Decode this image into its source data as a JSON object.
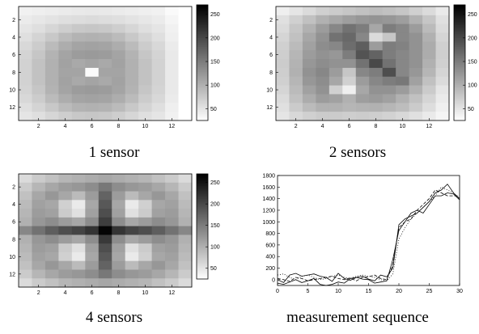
{
  "colormap": {
    "low": "#ffffff",
    "high": "#000000"
  },
  "chart_data": [
    {
      "type": "heatmap",
      "caption": "1 sensor",
      "rows": 13,
      "cols": 13,
      "xticks": [
        2,
        4,
        6,
        8,
        10,
        12
      ],
      "yticks": [
        2,
        4,
        6,
        8,
        10,
        12
      ],
      "colorbar": {
        "range": [
          25,
          270
        ],
        "ticks": [
          50,
          100,
          150,
          200,
          250
        ]
      },
      "values": [
        [
          38,
          40,
          42,
          44,
          46,
          47,
          46,
          44,
          42,
          40,
          38,
          30,
          25
        ],
        [
          44,
          48,
          52,
          56,
          58,
          60,
          58,
          56,
          52,
          48,
          44,
          35,
          25
        ],
        [
          50,
          56,
          64,
          72,
          78,
          80,
          78,
          72,
          64,
          56,
          50,
          38,
          25
        ],
        [
          56,
          66,
          78,
          90,
          98,
          100,
          98,
          90,
          78,
          66,
          56,
          40,
          25
        ],
        [
          62,
          74,
          90,
          104,
          112,
          114,
          112,
          104,
          90,
          74,
          62,
          44,
          25
        ],
        [
          66,
          80,
          98,
          112,
          120,
          122,
          120,
          112,
          98,
          80,
          66,
          46,
          25
        ],
        [
          68,
          84,
          100,
          114,
          108,
          112,
          108,
          114,
          100,
          84,
          68,
          46,
          25
        ],
        [
          68,
          84,
          100,
          112,
          112,
          30,
          112,
          112,
          100,
          84,
          68,
          46,
          25
        ],
        [
          68,
          84,
          100,
          114,
          108,
          112,
          108,
          114,
          100,
          84,
          68,
          46,
          25
        ],
        [
          66,
          80,
          98,
          112,
          120,
          122,
          120,
          112,
          98,
          80,
          66,
          46,
          25
        ],
        [
          62,
          74,
          90,
          104,
          112,
          114,
          112,
          104,
          90,
          74,
          62,
          44,
          25
        ],
        [
          56,
          66,
          78,
          90,
          98,
          100,
          98,
          90,
          78,
          66,
          56,
          40,
          25
        ],
        [
          50,
          56,
          64,
          72,
          78,
          80,
          78,
          72,
          64,
          56,
          50,
          38,
          25
        ]
      ]
    },
    {
      "type": "heatmap",
      "caption": "2 sensors",
      "rows": 13,
      "cols": 13,
      "xticks": [
        2,
        4,
        6,
        8,
        10,
        12
      ],
      "yticks": [
        2,
        4,
        6,
        8,
        10,
        12
      ],
      "colorbar": {
        "range": [
          25,
          270
        ],
        "ticks": [
          50,
          100,
          150,
          200,
          250
        ]
      },
      "values": [
        [
          40,
          50,
          60,
          70,
          75,
          80,
          85,
          88,
          85,
          80,
          70,
          60,
          45
        ],
        [
          55,
          70,
          85,
          100,
          110,
          118,
          125,
          128,
          125,
          118,
          100,
          80,
          55
        ],
        [
          60,
          80,
          100,
          120,
          140,
          160,
          150,
          110,
          150,
          140,
          120,
          90,
          60
        ],
        [
          65,
          85,
          110,
          130,
          160,
          170,
          140,
          60,
          80,
          140,
          130,
          100,
          65
        ],
        [
          70,
          90,
          115,
          135,
          140,
          165,
          180,
          120,
          150,
          145,
          130,
          105,
          70
        ],
        [
          72,
          95,
          120,
          130,
          125,
          150,
          190,
          175,
          150,
          140,
          130,
          105,
          72
        ],
        [
          74,
          98,
          125,
          135,
          130,
          130,
          160,
          200,
          160,
          140,
          130,
          100,
          70
        ],
        [
          72,
          100,
          130,
          140,
          120,
          80,
          140,
          150,
          195,
          140,
          125,
          95,
          65
        ],
        [
          70,
          95,
          125,
          135,
          110,
          70,
          120,
          140,
          150,
          155,
          115,
          85,
          60
        ],
        [
          65,
          90,
          115,
          130,
          70,
          40,
          110,
          130,
          130,
          120,
          100,
          75,
          50
        ],
        [
          60,
          85,
          105,
          120,
          115,
          100,
          118,
          122,
          115,
          100,
          85,
          65,
          45
        ],
        [
          55,
          75,
          90,
          100,
          100,
          95,
          98,
          100,
          95,
          88,
          75,
          58,
          40
        ],
        [
          50,
          62,
          70,
          75,
          75,
          72,
          74,
          72,
          68,
          62,
          55,
          45,
          35
        ]
      ]
    },
    {
      "type": "heatmap",
      "caption": "4 sensors",
      "rows": 13,
      "cols": 13,
      "xticks": [
        2,
        4,
        6,
        8,
        10,
        12
      ],
      "yticks": [
        2,
        4,
        6,
        8,
        10,
        12
      ],
      "colorbar": {
        "range": [
          25,
          270
        ],
        "ticks": [
          50,
          100,
          150,
          200,
          250
        ]
      },
      "values": [
        [
          60,
          75,
          85,
          95,
          100,
          105,
          110,
          105,
          100,
          95,
          85,
          75,
          60
        ],
        [
          75,
          95,
          110,
          120,
          125,
          135,
          155,
          135,
          125,
          120,
          110,
          95,
          75
        ],
        [
          85,
          110,
          125,
          110,
          90,
          120,
          175,
          120,
          90,
          110,
          125,
          110,
          85
        ],
        [
          90,
          115,
          110,
          70,
          45,
          110,
          185,
          110,
          45,
          70,
          110,
          115,
          90
        ],
        [
          95,
          120,
          115,
          75,
          55,
          115,
          195,
          115,
          55,
          75,
          115,
          120,
          95
        ],
        [
          100,
          125,
          135,
          120,
          110,
          135,
          210,
          135,
          110,
          120,
          135,
          125,
          100
        ],
        [
          140,
          160,
          180,
          195,
          205,
          220,
          265,
          220,
          205,
          195,
          180,
          160,
          140
        ],
        [
          100,
          125,
          135,
          120,
          110,
          135,
          215,
          135,
          110,
          120,
          135,
          125,
          100
        ],
        [
          95,
          120,
          115,
          75,
          55,
          115,
          195,
          115,
          55,
          75,
          115,
          120,
          95
        ],
        [
          90,
          115,
          110,
          70,
          45,
          110,
          185,
          110,
          45,
          70,
          110,
          115,
          90
        ],
        [
          85,
          110,
          125,
          110,
          90,
          120,
          175,
          120,
          90,
          110,
          125,
          110,
          85
        ],
        [
          75,
          95,
          110,
          120,
          125,
          135,
          155,
          135,
          125,
          120,
          110,
          95,
          75
        ],
        [
          60,
          75,
          85,
          95,
          100,
          105,
          110,
          105,
          100,
          95,
          85,
          75,
          60
        ]
      ]
    },
    {
      "type": "line",
      "caption": "measurement sequence",
      "xlim": [
        0,
        30
      ],
      "ylim": [
        -100,
        1800
      ],
      "xticks": [
        0,
        5,
        10,
        15,
        20,
        25,
        30
      ],
      "yticks": [
        0,
        200,
        400,
        600,
        800,
        1000,
        1200,
        1400,
        1600,
        1800
      ],
      "x": [
        0,
        1,
        2,
        3,
        4,
        5,
        6,
        7,
        8,
        9,
        10,
        11,
        12,
        13,
        14,
        15,
        16,
        17,
        18,
        19,
        20,
        21,
        22,
        23,
        24,
        25,
        26,
        27,
        28,
        29,
        30
      ],
      "series": [
        {
          "style": "solid",
          "values": [
            0,
            -50,
            80,
            110,
            60,
            80,
            100,
            60,
            40,
            -30,
            110,
            20,
            -10,
            40,
            60,
            10,
            -20,
            80,
            50,
            200,
            950,
            1050,
            1100,
            1150,
            1250,
            1350,
            1500,
            1550,
            1650,
            1500,
            1400
          ]
        },
        {
          "style": "solid",
          "values": [
            -60,
            -80,
            -40,
            0,
            -50,
            -20,
            20,
            -80,
            -100,
            -80,
            -40,
            -60,
            20,
            40,
            10,
            0,
            -60,
            -40,
            -20,
            350,
            850,
            1000,
            1150,
            1200,
            1150,
            1300,
            1450,
            1450,
            1500,
            1480,
            1380
          ]
        },
        {
          "style": "dashed",
          "values": [
            20,
            0,
            -30,
            40,
            20,
            -20,
            0,
            20,
            40,
            60,
            20,
            0,
            30,
            -20,
            40,
            50,
            80,
            20,
            0,
            250,
            900,
            1000,
            1050,
            1200,
            1300,
            1400,
            1550,
            1500,
            1450,
            1450,
            1450
          ]
        },
        {
          "style": "dotted",
          "values": [
            80,
            100,
            40,
            0,
            60,
            80,
            40,
            0,
            20,
            60,
            80,
            40,
            20,
            60,
            80,
            60,
            40,
            0,
            -20,
            100,
            700,
            900,
            1050,
            1150,
            1250,
            1350,
            1450,
            1600,
            1550,
            1500,
            1400
          ]
        }
      ]
    }
  ]
}
